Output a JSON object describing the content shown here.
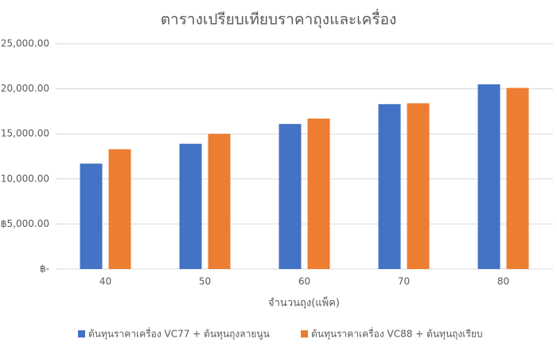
{
  "chart_data": {
    "type": "bar",
    "title": "ตารางเปรียบเทียบราคาถุงและเครื่อง",
    "x_label": "จำนวนถุง(แพ็ค)",
    "categories": [
      "40",
      "50",
      "60",
      "70",
      "80"
    ],
    "series": [
      {
        "name": "ต้นทุนราคาเครื่อง VC77 + ต้นทุนถุงลายนูน",
        "color": "#4472c4",
        "values": [
          11700,
          13900,
          16100,
          18300,
          20500
        ]
      },
      {
        "name": "ต้นทุนราคาเครื่อง VC88 + ต้นทุนถุงเรียบ",
        "color": "#ed7d31",
        "values": [
          13300,
          15000,
          16700,
          18400,
          20100
        ]
      }
    ],
    "ylim": [
      0,
      25000
    ],
    "yticks": [
      {
        "value": 0,
        "label": "฿-"
      },
      {
        "value": 5000,
        "label": "฿5,000.00"
      },
      {
        "value": 10000,
        "label": "฿10,000.00"
      },
      {
        "value": 15000,
        "label": "฿15,000.00"
      },
      {
        "value": 20000,
        "label": "฿20,000.00"
      },
      {
        "value": 25000,
        "label": "฿25,000.00"
      }
    ],
    "grid": true,
    "legend": "bottom"
  }
}
